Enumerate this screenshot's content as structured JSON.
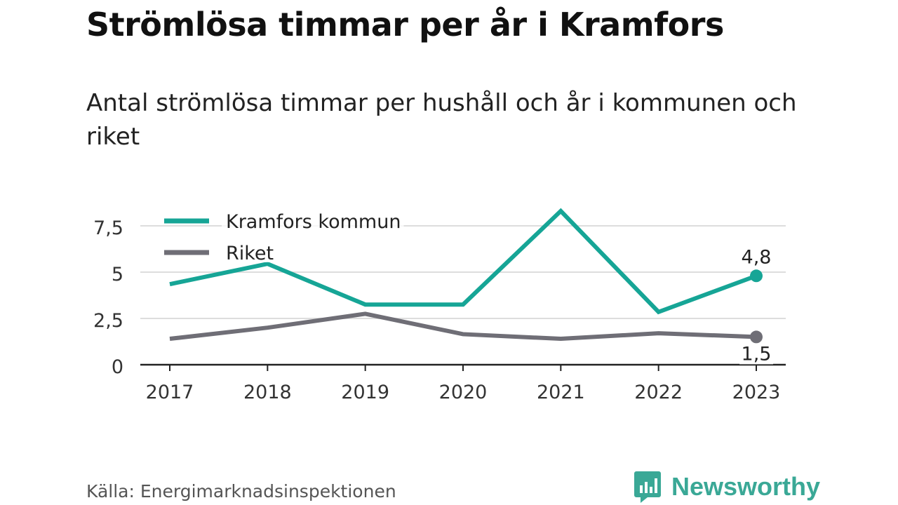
{
  "title": "Strömlösa timmar per år i Kramfors",
  "subtitle": "Antal strömlösa timmar per hushåll och år i kommunen och riket",
  "source": "Källa: Energimarknadsinspektionen",
  "brand": {
    "name": "Newsworthy",
    "icon": "bar-chart-speech-bubble-icon",
    "color": "#3aa896"
  },
  "chart_data": {
    "type": "line",
    "x": [
      "2017",
      "2018",
      "2019",
      "2020",
      "2021",
      "2022",
      "2023"
    ],
    "ylim": [
      0,
      8.5
    ],
    "yticks": [
      0,
      2.5,
      5,
      7.5
    ],
    "ytick_labels": [
      "0",
      "2,5",
      "5",
      "7,5"
    ],
    "grid": true,
    "legend_position": "top-left",
    "series": [
      {
        "name": "Kramfors kommun",
        "color": "#16a596",
        "values": [
          4.35,
          5.45,
          3.25,
          3.25,
          8.3,
          2.85,
          4.8
        ],
        "end_label": "4,8",
        "end_label_position": "above"
      },
      {
        "name": "Riket",
        "color": "#6f6e76",
        "values": [
          1.4,
          2.0,
          2.75,
          1.65,
          1.4,
          1.7,
          1.5
        ],
        "end_label": "1,5",
        "end_label_position": "below"
      }
    ]
  }
}
